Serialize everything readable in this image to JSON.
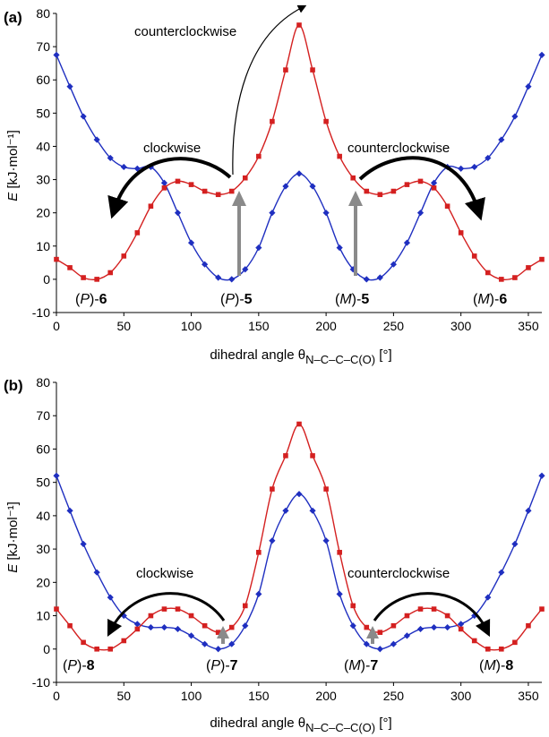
{
  "chart_data": [
    {
      "panel_label": "(a)",
      "type": "line",
      "xlabel_main": "dihedral angle θ",
      "xlabel_sub": "N–C–C–C(O)",
      "xlabel_unit": " [°]",
      "ylabel_var": "E",
      "ylabel_unit": " [kJ·mol⁻¹]",
      "xlim": [
        0,
        360
      ],
      "ylim": [
        -10,
        80
      ],
      "xticks": [
        0,
        50,
        100,
        150,
        200,
        250,
        300,
        350
      ],
      "yticks": [
        -10,
        0,
        10,
        20,
        30,
        40,
        50,
        60,
        70,
        80
      ],
      "series": [
        {
          "name": "blue (diamonds)",
          "color": "#1f2fc0",
          "marker": "diamond",
          "x": [
            0,
            10,
            20,
            30,
            40,
            50,
            60,
            70,
            80,
            90,
            100,
            110,
            120,
            130,
            140,
            150,
            160,
            170,
            180,
            190,
            200,
            210,
            220,
            230,
            240,
            250,
            260,
            270,
            280,
            290,
            300,
            310,
            320,
            330,
            340,
            350,
            360
          ],
          "y": [
            67.5,
            58,
            49,
            42,
            36.5,
            33.8,
            33.3,
            33.8,
            29,
            20,
            11,
            4.5,
            0.5,
            0,
            3,
            9.5,
            20,
            28,
            31.8,
            28,
            20,
            9.5,
            3,
            0,
            0.5,
            4.5,
            11,
            20,
            29,
            33.8,
            33.3,
            33.8,
            36.5,
            42,
            49,
            58,
            67.5
          ]
        },
        {
          "name": "red (squares)",
          "color": "#d42020",
          "marker": "square",
          "x": [
            0,
            10,
            20,
            30,
            40,
            50,
            60,
            70,
            80,
            90,
            100,
            110,
            120,
            130,
            140,
            150,
            160,
            170,
            180,
            190,
            200,
            210,
            220,
            230,
            240,
            250,
            260,
            270,
            280,
            290,
            300,
            310,
            320,
            330,
            340,
            350,
            360
          ],
          "y": [
            6,
            3.5,
            0.5,
            0,
            2,
            7,
            14,
            22,
            27.5,
            29.5,
            28.5,
            26.5,
            25.5,
            26.5,
            30.5,
            37,
            47.5,
            63,
            76.5,
            63,
            47.5,
            37,
            30.5,
            26.5,
            25.5,
            26.5,
            28.5,
            29.5,
            27.5,
            22,
            14,
            7,
            2,
            0,
            0.5,
            3.5,
            6
          ]
        }
      ],
      "annotations": {
        "top_label": "counterclockwise",
        "left_label": "clockwise",
        "right_label": "counterclockwise",
        "conformers": [
          {
            "prefix": "(",
            "chir": "P",
            "mid": ")-",
            "num": "6"
          },
          {
            "prefix": "(",
            "chir": "P",
            "mid": ")-",
            "num": "5"
          },
          {
            "prefix": "(",
            "chir": "M",
            "mid": ")-",
            "num": "5"
          },
          {
            "prefix": "(",
            "chir": "M",
            "mid": ")-",
            "num": "6"
          }
        ]
      }
    },
    {
      "panel_label": "(b)",
      "type": "line",
      "xlabel_main": "dihedral angle θ",
      "xlabel_sub": "N–C–C–C(O)",
      "xlabel_unit": " [°]",
      "ylabel_var": "E",
      "ylabel_unit": " [kJ·mol⁻¹]",
      "xlim": [
        0,
        360
      ],
      "ylim": [
        -10,
        80
      ],
      "xticks": [
        0,
        50,
        100,
        150,
        200,
        250,
        300,
        350
      ],
      "yticks": [
        -10,
        0,
        10,
        20,
        30,
        40,
        50,
        60,
        70,
        80
      ],
      "series": [
        {
          "name": "blue (diamonds)",
          "color": "#1f2fc0",
          "marker": "diamond",
          "x": [
            0,
            10,
            20,
            30,
            40,
            50,
            60,
            70,
            80,
            90,
            100,
            110,
            120,
            130,
            140,
            150,
            160,
            170,
            180,
            190,
            200,
            210,
            220,
            230,
            240,
            250,
            260,
            270,
            280,
            290,
            300,
            310,
            320,
            330,
            340,
            350,
            360
          ],
          "y": [
            52,
            41.5,
            31.5,
            23,
            15.5,
            10,
            7.5,
            6.5,
            6.5,
            6,
            4,
            1.5,
            0,
            1.5,
            7,
            16.5,
            32.5,
            41.5,
            46.5,
            41.5,
            32.5,
            16.5,
            7,
            1.5,
            0,
            1.5,
            4,
            6,
            6.5,
            6.5,
            7.5,
            10,
            15.5,
            23,
            31.5,
            41.5,
            52
          ]
        },
        {
          "name": "red (squares)",
          "color": "#d42020",
          "marker": "square",
          "x": [
            0,
            10,
            20,
            30,
            40,
            50,
            60,
            70,
            80,
            90,
            100,
            110,
            120,
            130,
            140,
            150,
            160,
            170,
            180,
            190,
            200,
            210,
            220,
            230,
            240,
            250,
            260,
            270,
            280,
            290,
            300,
            310,
            320,
            330,
            340,
            350,
            360
          ],
          "y": [
            12,
            7,
            2,
            0,
            0,
            2.5,
            6,
            10,
            12,
            12,
            10,
            7,
            5,
            6.5,
            13,
            29,
            48,
            58,
            67.5,
            58,
            48,
            29,
            13,
            6.5,
            5,
            7,
            10,
            12,
            12,
            10,
            6,
            2.5,
            0,
            0,
            2,
            7,
            12
          ]
        }
      ],
      "annotations": {
        "left_label": "clockwise",
        "right_label": "counterclockwise",
        "conformers": [
          {
            "prefix": "(",
            "chir": "P",
            "mid": ")-",
            "num": "8"
          },
          {
            "prefix": "(",
            "chir": "P",
            "mid": ")-",
            "num": "7"
          },
          {
            "prefix": "(",
            "chir": "M",
            "mid": ")-",
            "num": "7"
          },
          {
            "prefix": "(",
            "chir": "M",
            "mid": ")-",
            "num": "8"
          }
        ]
      }
    }
  ]
}
